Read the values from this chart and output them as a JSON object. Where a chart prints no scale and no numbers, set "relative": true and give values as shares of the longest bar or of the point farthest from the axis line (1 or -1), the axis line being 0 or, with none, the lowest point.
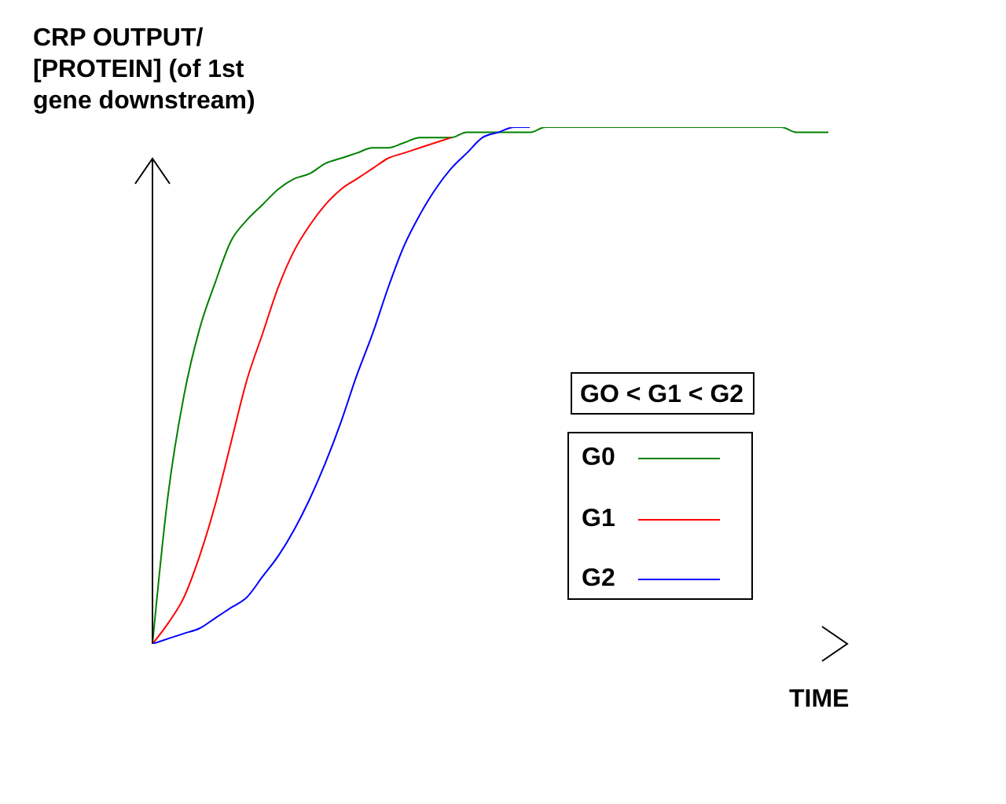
{
  "chart_data": {
    "type": "line",
    "ylabel": "CRP OUTPUT/ [PROTEIN] (of 1st gene downstream)",
    "xlabel": "TIME",
    "annotations": [
      "GO < G1 < G2"
    ],
    "relative": true,
    "legend": "bottom right",
    "categories": [
      null,
      null,
      null,
      null,
      null,
      null,
      null,
      null,
      null,
      null,
      null,
      null,
      null,
      null,
      null,
      null,
      null,
      null,
      null,
      null,
      null,
      null,
      null,
      null,
      null,
      null,
      null,
      null,
      null,
      null,
      null,
      null,
      null,
      null,
      null,
      null,
      null,
      null,
      null,
      null,
      null,
      null,
      null,
      null
    ],
    "series": [
      {
        "name": "G0",
        "color": "#008000",
        "values": [
          0,
          0.29,
          0.48,
          0.61,
          0.7,
          0.78,
          0.82,
          0.85,
          0.88,
          0.9,
          0.91,
          0.93,
          0.94,
          0.95,
          0.96,
          0.96,
          0.97,
          0.98,
          0.98,
          0.98,
          0.99,
          0.99,
          0.99,
          0.99,
          0.99,
          1.0,
          1.0,
          1.0,
          1.0,
          1.0,
          1.0,
          1.0,
          1.0,
          1.0,
          1.0,
          1.0,
          1.0,
          1.0,
          1.0,
          1.0,
          1.0,
          0.99,
          0.99,
          0.99
        ]
      },
      {
        "name": "G1",
        "color": "#ff0000",
        "values": [
          0,
          0.04,
          0.09,
          0.17,
          0.27,
          0.39,
          0.51,
          0.6,
          0.69,
          0.76,
          0.81,
          0.85,
          0.88,
          0.9,
          0.92,
          0.94,
          0.95,
          0.96,
          0.97,
          0.98,
          null,
          null,
          null,
          null,
          null,
          null,
          null,
          null,
          null,
          null,
          null,
          null,
          null,
          null,
          null,
          null,
          null,
          null,
          null,
          null,
          null,
          null,
          null,
          null
        ]
      },
      {
        "name": "G2",
        "color": "#0000ff",
        "values": [
          0,
          0.01,
          0.02,
          0.03,
          0.05,
          0.07,
          0.09,
          0.13,
          0.17,
          0.22,
          0.28,
          0.35,
          0.43,
          0.52,
          0.6,
          0.69,
          0.77,
          0.83,
          0.88,
          0.92,
          0.95,
          0.98,
          0.99,
          1.0,
          1.0,
          null,
          null,
          null,
          null,
          null,
          null,
          null,
          null,
          null,
          null,
          null,
          null,
          null,
          null,
          null,
          null,
          null,
          null,
          null
        ]
      }
    ]
  }
}
